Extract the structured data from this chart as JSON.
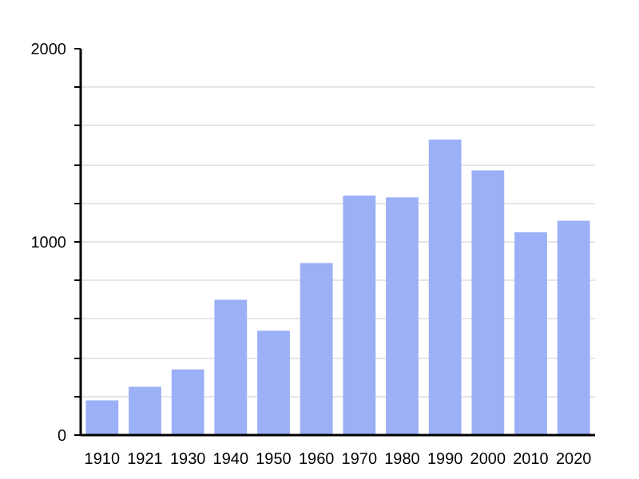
{
  "chart_data": {
    "type": "bar",
    "categories": [
      "1910",
      "1921",
      "1930",
      "1940",
      "1950",
      "1960",
      "1970",
      "1980",
      "1990",
      "2000",
      "2010",
      "2020"
    ],
    "values": [
      180,
      250,
      340,
      700,
      540,
      890,
      1240,
      1230,
      1530,
      1370,
      1050,
      1110
    ],
    "color": "#9bb0f7",
    "ylim": [
      0,
      2000
    ],
    "yticks": [
      0,
      {
        "value": 200,
        "label": null
      },
      {
        "value": 400,
        "label": null
      },
      {
        "value": 600,
        "label": null
      },
      {
        "value": 800,
        "label": null
      },
      1000,
      {
        "value": 1200,
        "label": null
      },
      {
        "value": 1400,
        "label": null
      },
      {
        "value": 1600,
        "label": null
      },
      {
        "value": 1800,
        "label": null
      },
      2000
    ],
    "grid": "y"
  }
}
